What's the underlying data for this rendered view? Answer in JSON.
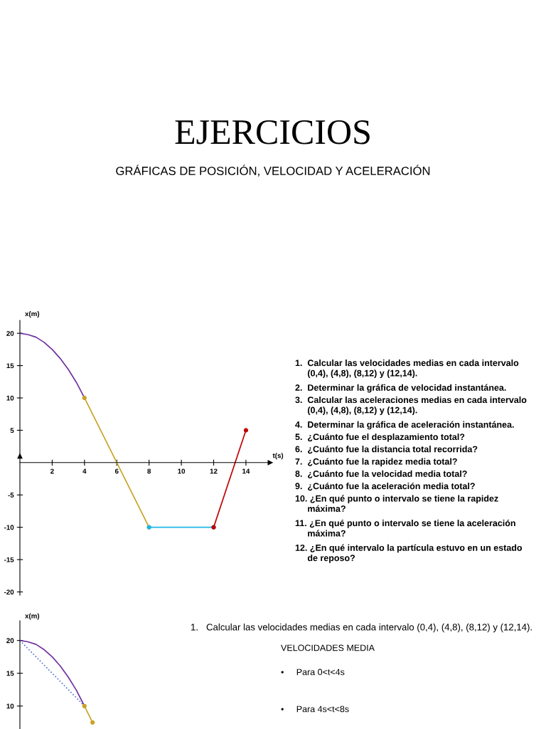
{
  "chart_data": [
    {
      "type": "line",
      "title": "EJERCICIOS",
      "subtitle": "GRÁFICAS DE POSICIÓN, VELOCIDAD Y ACELERACIÓN",
      "xlabel": "t(s)",
      "ylabel": "x(m)",
      "xlim": [
        0,
        15.5
      ],
      "ylim": [
        -20.5,
        22
      ],
      "xticks": [
        2,
        4,
        6,
        8,
        10,
        12,
        14
      ],
      "yticks": [
        -20,
        -15,
        -10,
        -5,
        5,
        10,
        15,
        20
      ],
      "series": [
        {
          "color": "#7030a0",
          "x": [
            0,
            0.5,
            1,
            1.5,
            2,
            2.5,
            3,
            3.5,
            4
          ],
          "values": [
            20,
            19.8,
            19.4,
            18.6,
            17.5,
            16.1,
            14.4,
            12.4,
            10
          ],
          "marker": "none"
        },
        {
          "color": "#c9a227",
          "x": [
            4,
            8
          ],
          "values": [
            10,
            -10
          ],
          "marker": "circle"
        },
        {
          "color": "#1fb6e6",
          "x": [
            8,
            12
          ],
          "values": [
            -10,
            -10
          ],
          "marker": "circle"
        },
        {
          "color": "#c00000",
          "x": [
            12,
            14
          ],
          "values": [
            -10,
            5
          ],
          "marker": "circle"
        }
      ],
      "annotations": [
        "1.  Calcular las velocidades medias en cada intervalo\n     (0,4), (4,8), (8,12) y (12,14).",
        "2.  Determinar la gráfica de velocidad instantánea.",
        "3.  Calcular las aceleraciones medias en cada intervalo\n     (0,4), (4,8), (8,12) y (12,14).",
        "4.  Determinar la gráfica de aceleración instantánea.",
        "5.  ¿Cuánto fue el desplazamiento total?",
        "6.  ¿Cuánto fue la distancia total recorrida?",
        "7.  ¿Cuánto fue la rapidez media total?",
        "8.  ¿Cuánto fue la velocidad media total?",
        "9.  ¿Cuánto fue la aceleración media total?",
        "10. ¿En qué punto o intervalo se tiene la rapidez\n     máxima?",
        "11. ¿En qué punto o intervalo se tiene la aceleración\n     máxima?",
        "12. ¿En qué intervalo la partícula estuvo en un estado\n     de reposo?"
      ]
    },
    {
      "type": "line",
      "ylabel": "x(m)",
      "ylim": [
        6.5,
        23
      ],
      "yticks": [
        10,
        15,
        20
      ],
      "tick_labels": "y",
      "categories": [
        null,
        null,
        null,
        null,
        null,
        null,
        null,
        null,
        null,
        null
      ],
      "series": [
        {
          "color": "#7030a0",
          "values": [
            20,
            19.8,
            19.4,
            18.6,
            17.5,
            16.1,
            14.4,
            12.4,
            10,
            null
          ],
          "marker": "none"
        },
        {
          "color": "#4f6fd0",
          "values": [
            20,
            18.75,
            17.5,
            16.25,
            15,
            13.75,
            12.5,
            11.25,
            10,
            null
          ],
          "marker": "none",
          "line_style": "dotted"
        },
        {
          "color": "#c9a227",
          "values": [
            null,
            null,
            null,
            null,
            null,
            null,
            null,
            null,
            10,
            7.5
          ],
          "marker": "circle"
        }
      ],
      "annotations": [
        "1.   Calcular las velocidades medias en cada intervalo (0,4), (4,8), (8,12) y (12,14).",
        "VELOCIDADES MEDIA",
        "•     Para 0<t<4s",
        "•     Para 4s<t<8s"
      ]
    }
  ]
}
